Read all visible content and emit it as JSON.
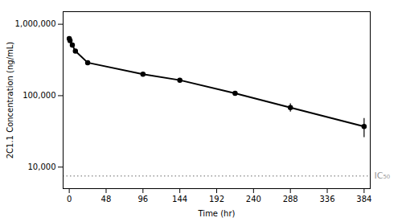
{
  "chart_data": {
    "type": "line",
    "x": [
      0,
      1,
      4,
      8,
      24,
      96,
      144,
      216,
      288,
      384
    ],
    "values": [
      630000,
      590000,
      510000,
      420000,
      290000,
      200000,
      165000,
      108000,
      68000,
      37000
    ],
    "error_low": [
      40000,
      35000,
      30000,
      22000,
      15000,
      13000,
      8000,
      7000,
      9000,
      11000
    ],
    "error_high": [
      40000,
      35000,
      30000,
      22000,
      15000,
      13000,
      8000,
      7000,
      9000,
      11000
    ],
    "color": "#000000",
    "marker": "circle",
    "xlabel": "Time (hr)",
    "ylabel": "2C1.1 Concentration (ng/mL)",
    "log": "y",
    "xlim": [
      -8,
      392
    ],
    "ylim": [
      5000,
      1500000
    ],
    "xticks": [
      0,
      48,
      96,
      144,
      192,
      240,
      288,
      336,
      384
    ],
    "yticks": [
      {
        "value": 10000,
        "label": "10,000"
      },
      {
        "value": 100000,
        "label": "100,000"
      },
      {
        "value": 1000000,
        "label": "1,000,000"
      }
    ],
    "grid": false,
    "annotations": [
      {
        "type": "hline",
        "value": 7500,
        "label": "IC₅₀",
        "color": "#999999",
        "line_style": "dotted"
      }
    ]
  }
}
